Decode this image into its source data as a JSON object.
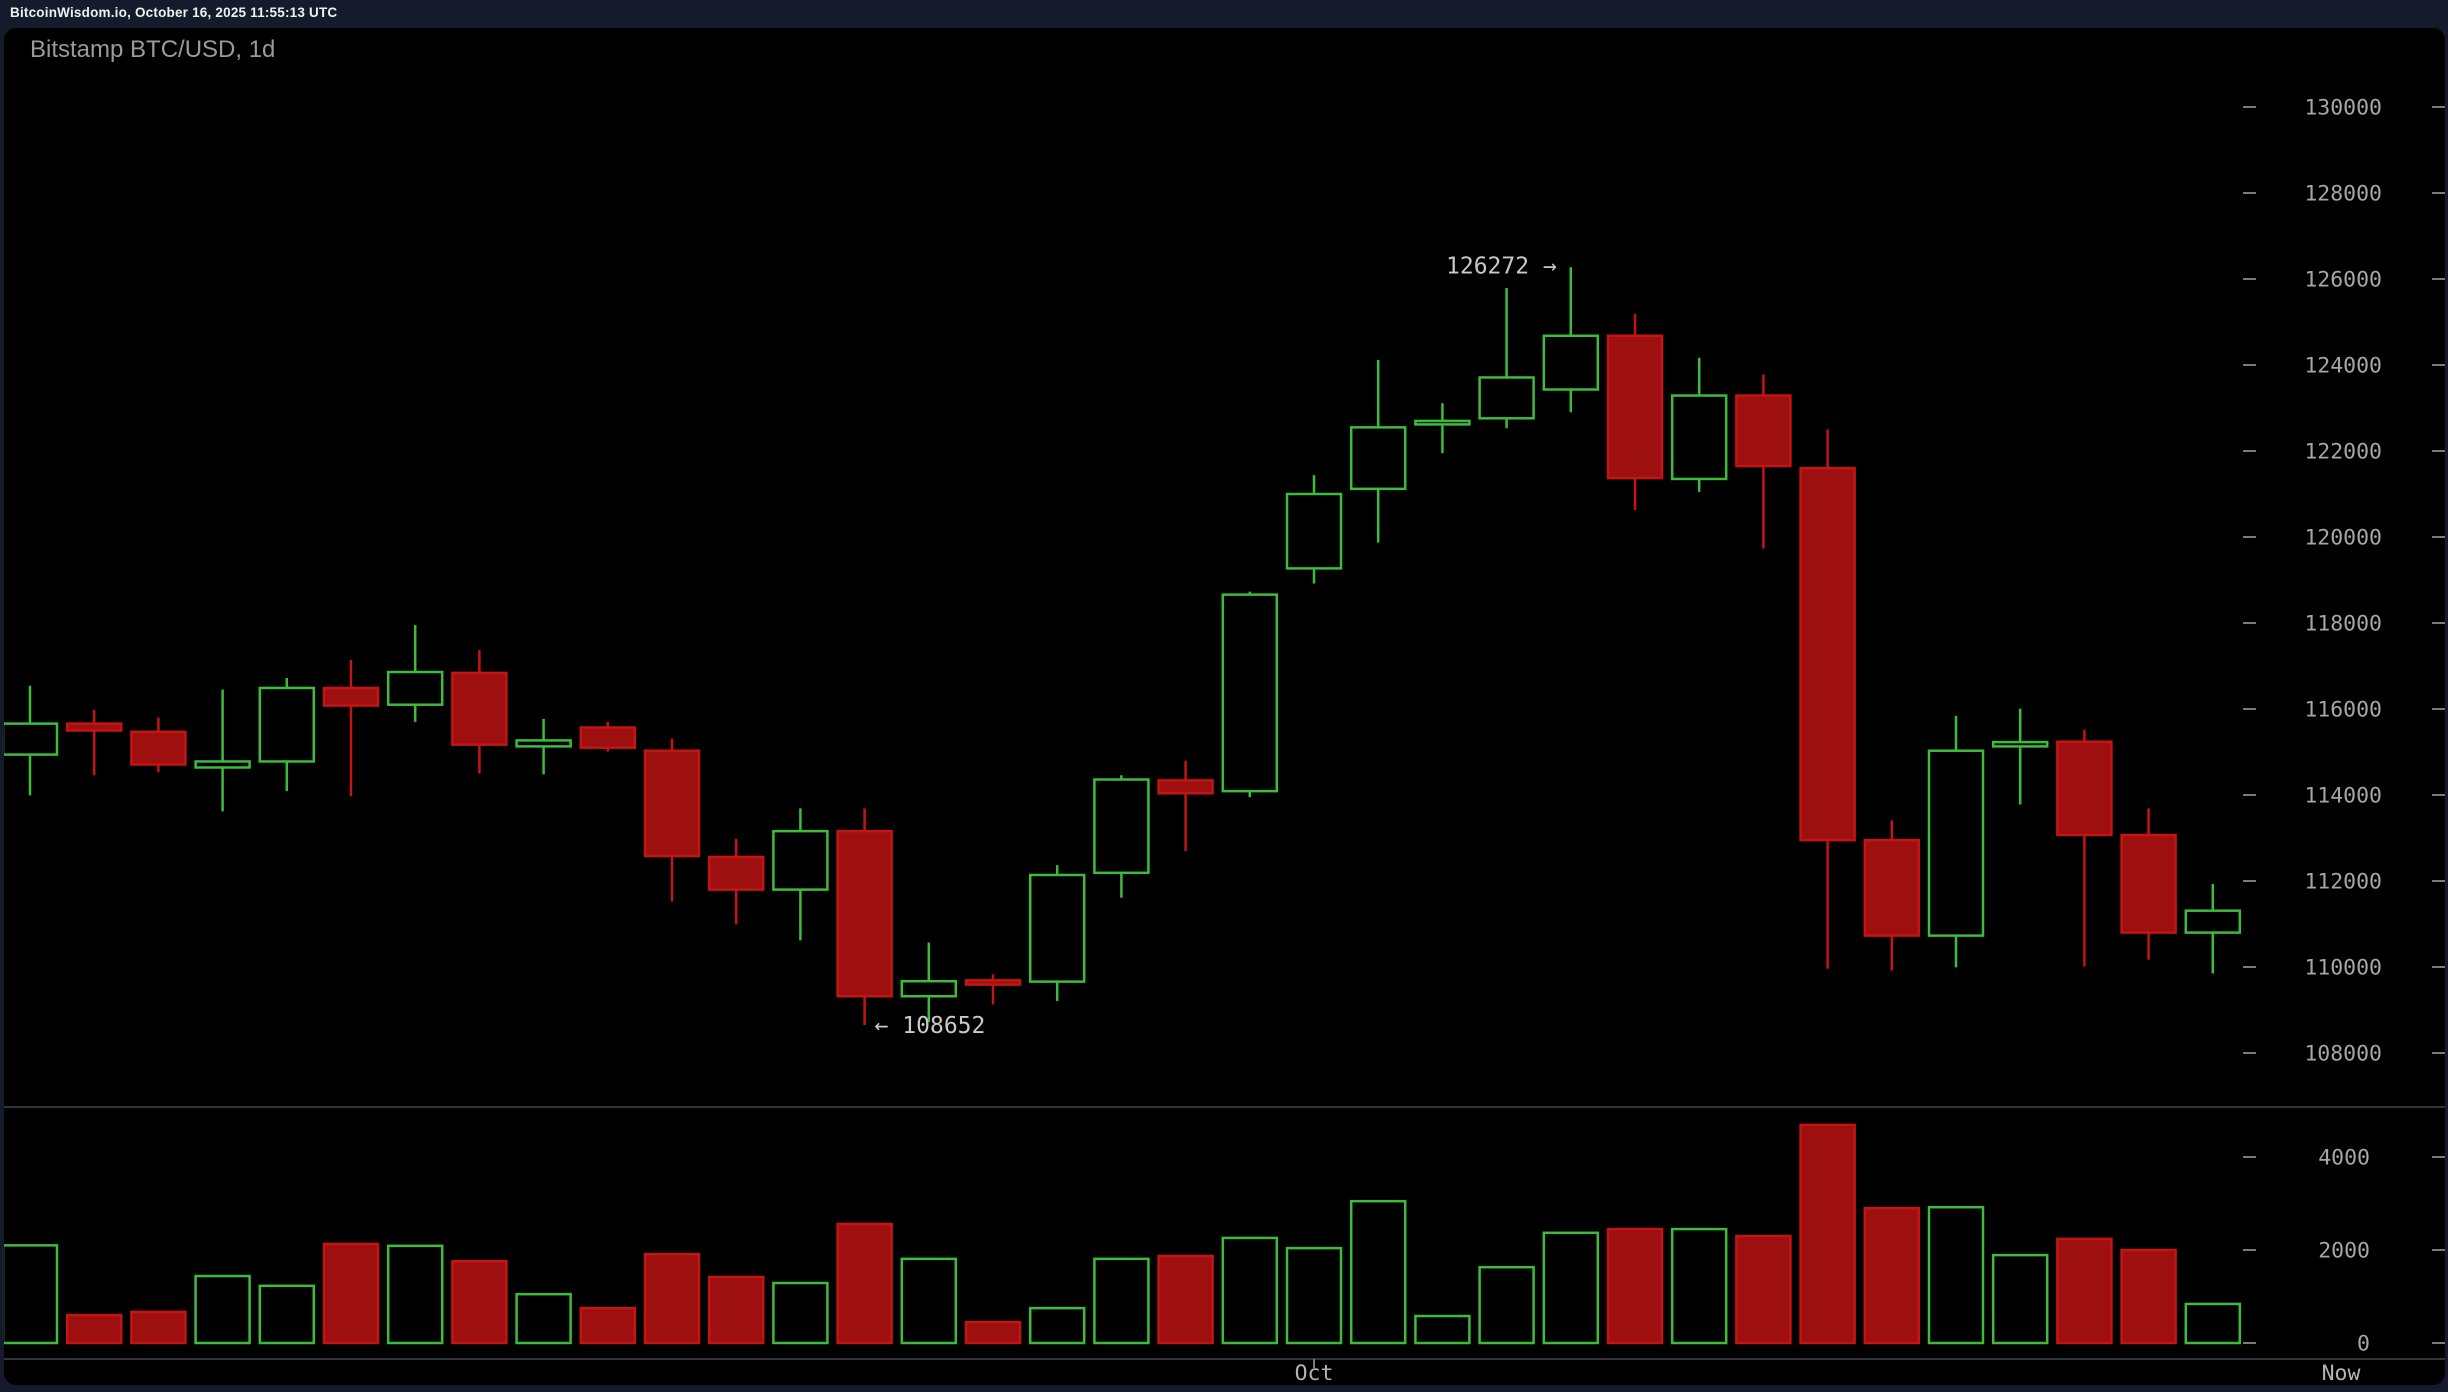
{
  "page": {
    "topbar_text": "BitcoinWisdom.io, October 16, 2025 11:55:13 UTC",
    "title": "Bitstamp BTC/USD, 1d"
  },
  "colors": {
    "page_background": "#151b2c",
    "panel_background": "#000000",
    "up_green": "#3dbb3d",
    "down_red_border": "#c41414",
    "down_red_fill": "#9e0f0f",
    "axis_label_text": "#a6a6a6",
    "x_label_text": "#b4b4b4",
    "tick_dash": "#7a7a7a",
    "annotation_text": "#c9c9c9",
    "separator_line": "#30343c",
    "topbar_text": "#f0f0f0",
    "title_text": "#9a9a9a"
  },
  "chart_data": {
    "type": "candlestick",
    "title": "Bitstamp BTC/USD, 1d",
    "interval": "1d",
    "legend_position": "none",
    "grid": "off",
    "price_axis": {
      "side": "right",
      "min": 108000,
      "max": 130000,
      "tick_step": 2000,
      "tick_labels": [
        "130000",
        "128000",
        "126000",
        "124000",
        "122000",
        "120000",
        "118000",
        "116000",
        "114000",
        "112000",
        "110000",
        "108000"
      ]
    },
    "volume_axis": {
      "side": "right",
      "tick_labels": [
        "4000",
        "2000",
        "0"
      ],
      "tick_values": [
        4000,
        2000,
        0
      ]
    },
    "x_axis": {
      "labels": [
        {
          "label": "Oct",
          "candle_index": 20,
          "has_tick": true
        },
        {
          "label": "Now",
          "at_right_edge": true,
          "has_tick": false
        }
      ]
    },
    "annotations": [
      {
        "text": "126272 →",
        "price": 126272,
        "candle_index": 24,
        "placement": "left-of-high"
      },
      {
        "text": "← 108652",
        "price": 108652,
        "candle_index": 13,
        "placement": "right-of-low"
      }
    ],
    "candles": [
      {
        "open": 114940,
        "high": 116540,
        "low": 113990,
        "close": 115660,
        "volume": 2100
      },
      {
        "open": 115660,
        "high": 115980,
        "low": 114460,
        "close": 115500,
        "volume": 600
      },
      {
        "open": 115470,
        "high": 115800,
        "low": 114530,
        "close": 114710,
        "volume": 670
      },
      {
        "open": 114640,
        "high": 116450,
        "low": 113620,
        "close": 114780,
        "volume": 1440
      },
      {
        "open": 114780,
        "high": 116720,
        "low": 114090,
        "close": 116490,
        "volume": 1230
      },
      {
        "open": 116490,
        "high": 117140,
        "low": 113970,
        "close": 116080,
        "volume": 2130
      },
      {
        "open": 116100,
        "high": 117950,
        "low": 115700,
        "close": 116860,
        "volume": 2090
      },
      {
        "open": 116840,
        "high": 117370,
        "low": 114500,
        "close": 115170,
        "volume": 1760
      },
      {
        "open": 115130,
        "high": 115770,
        "low": 114480,
        "close": 115270,
        "volume": 1050
      },
      {
        "open": 115570,
        "high": 115700,
        "low": 115010,
        "close": 115100,
        "volume": 750
      },
      {
        "open": 115030,
        "high": 115310,
        "low": 111520,
        "close": 112580,
        "volume": 1910
      },
      {
        "open": 112560,
        "high": 112980,
        "low": 110990,
        "close": 111800,
        "volume": 1420
      },
      {
        "open": 111800,
        "high": 113690,
        "low": 110620,
        "close": 113160,
        "volume": 1290
      },
      {
        "open": 113160,
        "high": 113690,
        "low": 108652,
        "close": 109320,
        "volume": 2560
      },
      {
        "open": 109320,
        "high": 110570,
        "low": 108720,
        "close": 109670,
        "volume": 1810
      },
      {
        "open": 109690,
        "high": 109830,
        "low": 109130,
        "close": 109590,
        "volume": 450
      },
      {
        "open": 109660,
        "high": 112370,
        "low": 109210,
        "close": 112140,
        "volume": 750
      },
      {
        "open": 112190,
        "high": 114460,
        "low": 111610,
        "close": 114360,
        "volume": 1810
      },
      {
        "open": 114340,
        "high": 114800,
        "low": 112700,
        "close": 114040,
        "volume": 1870
      },
      {
        "open": 114090,
        "high": 118730,
        "low": 113950,
        "close": 118660,
        "volume": 2260
      },
      {
        "open": 119270,
        "high": 121440,
        "low": 118920,
        "close": 121000,
        "volume": 2040
      },
      {
        "open": 121120,
        "high": 124120,
        "low": 119870,
        "close": 122550,
        "volume": 3050
      },
      {
        "open": 122630,
        "high": 123110,
        "low": 121950,
        "close": 122700,
        "volume": 580
      },
      {
        "open": 122760,
        "high": 125790,
        "low": 122530,
        "close": 123710,
        "volume": 1630
      },
      {
        "open": 123430,
        "high": 126272,
        "low": 122900,
        "close": 124680,
        "volume": 2370
      },
      {
        "open": 124680,
        "high": 125190,
        "low": 120630,
        "close": 121370,
        "volume": 2450
      },
      {
        "open": 121350,
        "high": 124170,
        "low": 121050,
        "close": 123290,
        "volume": 2450
      },
      {
        "open": 123290,
        "high": 123780,
        "low": 119730,
        "close": 121650,
        "volume": 2300
      },
      {
        "open": 121600,
        "high": 122500,
        "low": 109960,
        "close": 112950,
        "volume": 4690
      },
      {
        "open": 112950,
        "high": 113410,
        "low": 109920,
        "close": 110730,
        "volume": 2900
      },
      {
        "open": 110730,
        "high": 115840,
        "low": 109990,
        "close": 115030,
        "volume": 2920
      },
      {
        "open": 115130,
        "high": 116010,
        "low": 113780,
        "close": 115230,
        "volume": 1890
      },
      {
        "open": 115240,
        "high": 115520,
        "low": 110010,
        "close": 113070,
        "volume": 2240
      },
      {
        "open": 113070,
        "high": 113690,
        "low": 110170,
        "close": 110800,
        "volume": 2000
      },
      {
        "open": 110800,
        "high": 111930,
        "low": 109850,
        "close": 111310,
        "volume": 840
      }
    ]
  }
}
